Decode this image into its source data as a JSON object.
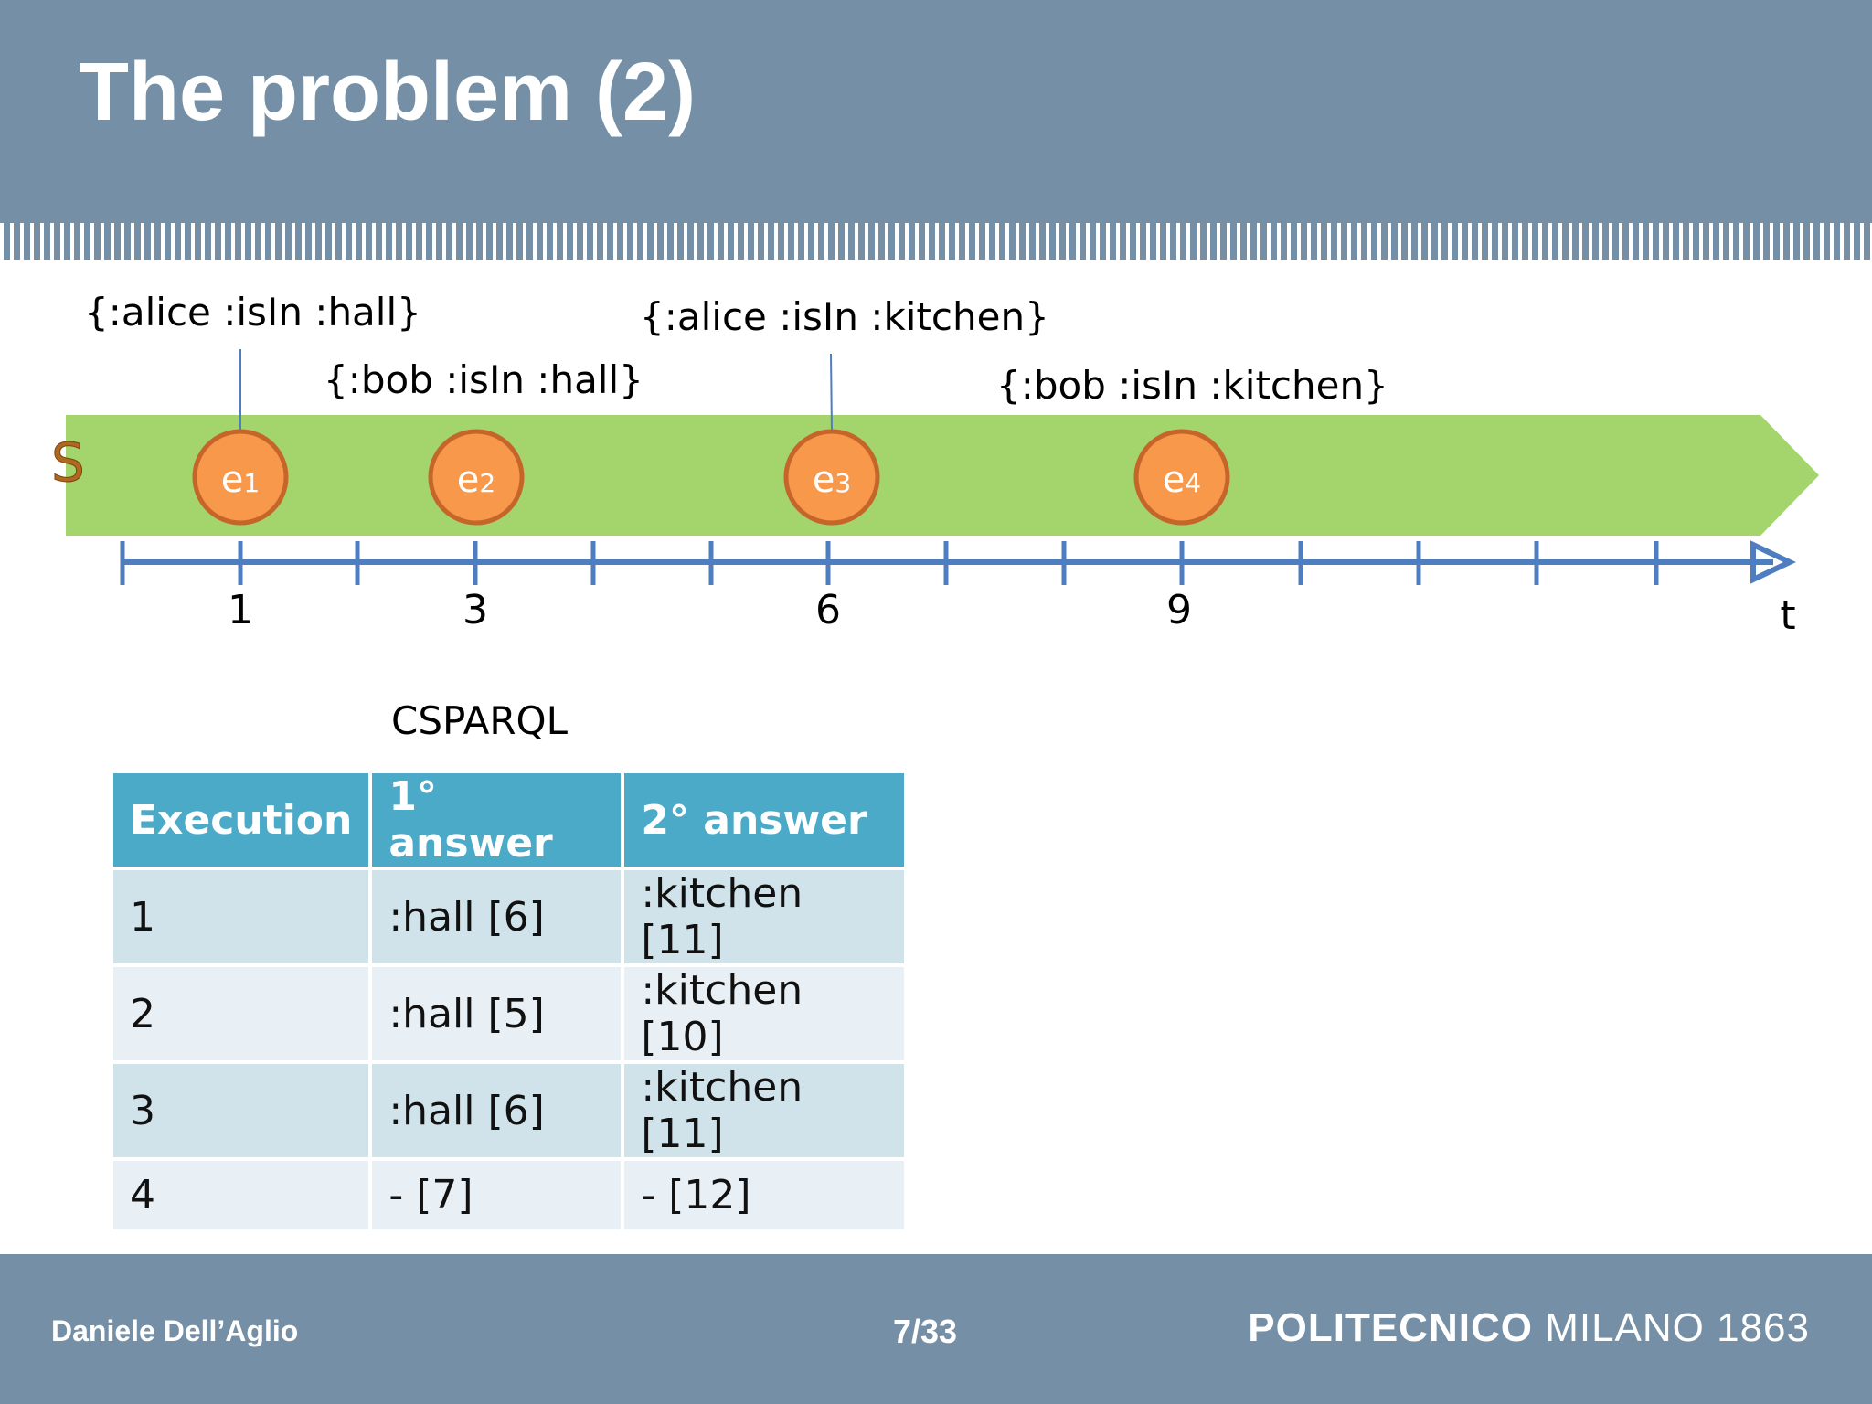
{
  "slide": {
    "title": "The problem (2)"
  },
  "timeline": {
    "stream_label": "S",
    "axis_label": "t",
    "ticks": [
      "1",
      "3",
      "6",
      "9"
    ],
    "events": [
      {
        "id": "e",
        "sub": "1",
        "triple": "{:alice :isIn :hall}",
        "time": 1
      },
      {
        "id": "e",
        "sub": "2",
        "triple": "{:bob :isIn :hall}",
        "time": 3
      },
      {
        "id": "e",
        "sub": "3",
        "triple": "{:alice :isIn :kitchen}",
        "time": 6
      },
      {
        "id": "e",
        "sub": "4",
        "triple": "{:bob :isIn :kitchen}",
        "time": 9
      }
    ]
  },
  "table": {
    "caption": "CSPARQL",
    "headers": [
      "Execution",
      "1° answer",
      "2° answer"
    ],
    "rows": [
      [
        "1",
        ":hall [6]",
        ":kitchen [11]"
      ],
      [
        "2",
        ":hall [5]",
        ":kitchen [10]"
      ],
      [
        "3",
        ":hall [6]",
        ":kitchen [11]"
      ],
      [
        "4",
        "- [7]",
        "- [12]"
      ]
    ]
  },
  "footer": {
    "author": "Daniele Dell’Aglio",
    "page": "7/33",
    "logo_bold": "POLITECNICO",
    "logo_rest": "MILANO 1863"
  },
  "colors": {
    "header": "#7590a6",
    "stream": "#a4d46c",
    "event": "#f7984a",
    "event_border": "#c5652a",
    "axis": "#4f7ec0",
    "table_header": "#4aaac8"
  }
}
